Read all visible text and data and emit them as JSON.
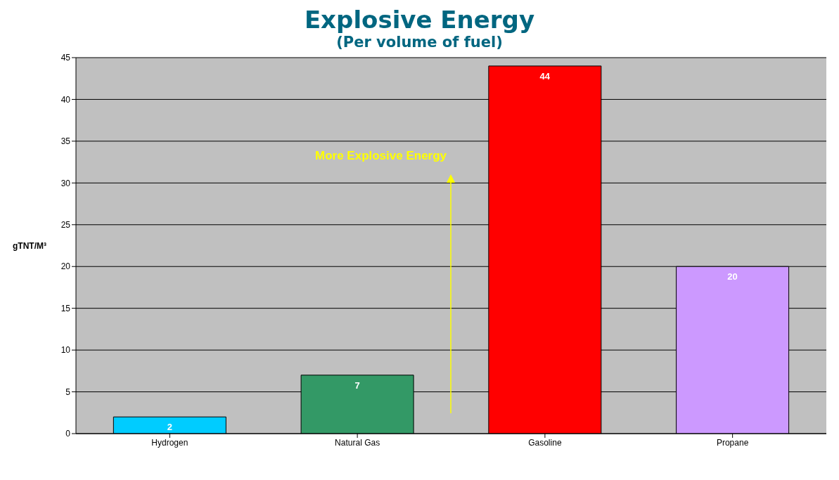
{
  "chart_data": {
    "type": "bar",
    "title": "Explosive Energy",
    "subtitle": "(Per volume of fuel)",
    "ylabel": "gTNT/M³",
    "categories": [
      "Hydrogen",
      "Natural Gas",
      "Gasoline",
      "Propane"
    ],
    "values": [
      2,
      7,
      44,
      20
    ],
    "colors": [
      "#00ccff",
      "#339966",
      "#ff0000",
      "#cc99ff"
    ],
    "ylim": [
      0,
      45
    ],
    "yticks": [
      0,
      5,
      10,
      15,
      20,
      25,
      30,
      35,
      40,
      45
    ],
    "grid": "y",
    "data_labels": true,
    "annotations": [
      "More Explosive Energy"
    ]
  }
}
